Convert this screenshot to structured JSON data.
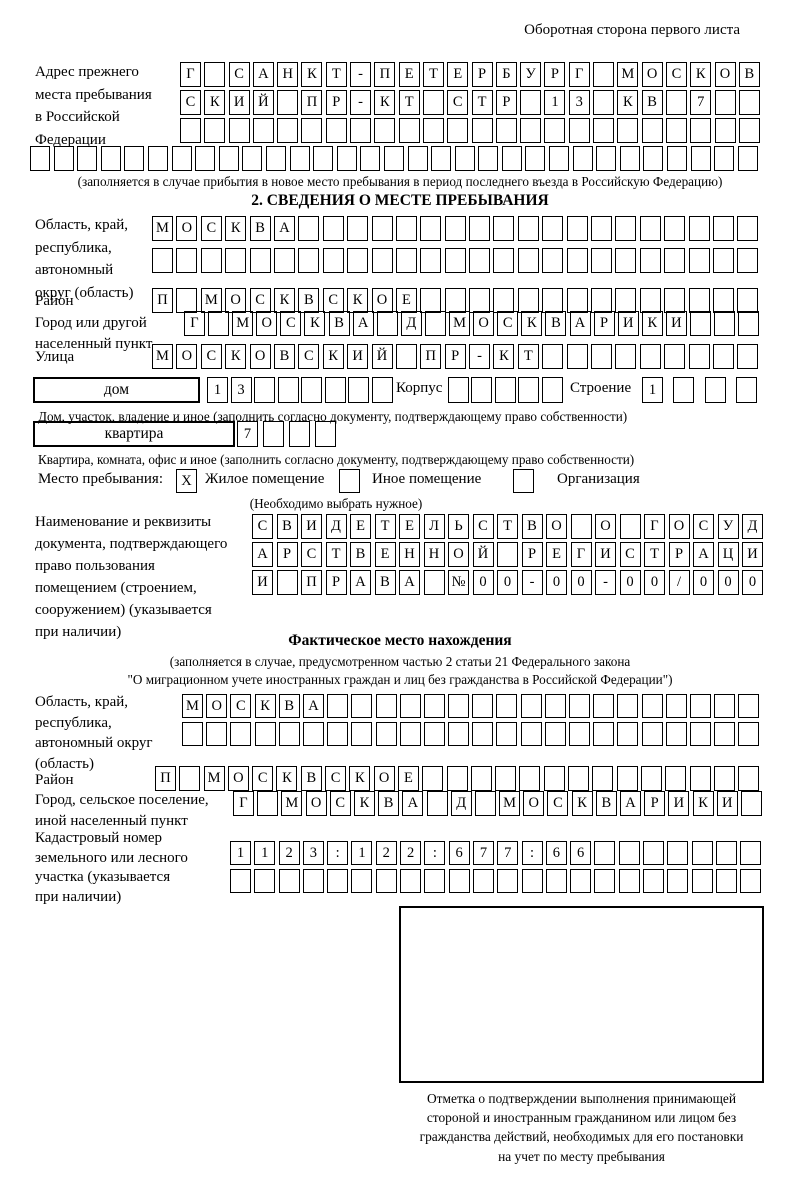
{
  "page": {
    "back_note": "Оборотная сторона первого листа"
  },
  "colors": {
    "ink": "#000000",
    "paper": "#ffffff"
  },
  "prev_address": {
    "label_lines": [
      "Адрес прежнего",
      "места пребывания",
      "в Российской",
      "Федерации"
    ],
    "rows": [
      {
        "boxes": 24,
        "text": "Г САНКТ-ПЕТЕРБУРГ МОСКОВ"
      },
      {
        "boxes": 24,
        "text": "СКИЙ ПР-КТ СТР 13 КВ 7"
      },
      {
        "boxes": 24,
        "text": ""
      },
      {
        "boxes": 31,
        "text": ""
      }
    ],
    "caption": "(заполняется в случае прибытия в новое место пребывания в период последнего въезда в Российскую Федерацию)"
  },
  "section2": {
    "title": "2. СВЕДЕНИЯ О МЕСТЕ ПРЕБЫВАНИЯ",
    "region": {
      "label_lines": [
        "Область, край,",
        "республика,",
        "автономный",
        "округ (область)"
      ],
      "rows": [
        {
          "boxes": 25,
          "text": "МОСКВА"
        },
        {
          "boxes": 25,
          "text": ""
        }
      ]
    },
    "district": {
      "label": "Район",
      "row": {
        "boxes": 25,
        "text": "П МОСКВСКОЕ"
      }
    },
    "city": {
      "label_lines": [
        "Город или другой",
        "населенный пункт"
      ],
      "row": {
        "boxes": 24,
        "text": "Г МОСКВА Д МОСКВАРИКИ"
      }
    },
    "street": {
      "label": "Улица",
      "row": {
        "boxes": 25,
        "text": "МОСКОВСКИЙ ПР-КТ"
      }
    },
    "house": {
      "type_label": "дом",
      "number": {
        "boxes": 8,
        "text": "13"
      },
      "korpus_label": "Корпус",
      "korpus": {
        "boxes": 5,
        "text": ""
      },
      "stroenie_label": "Строение",
      "stroenie": {
        "boxes": 4,
        "text": "1"
      },
      "caption": "Дом, участок, владение и иное (заполнить согласно документу, подтверждающему право собственности)"
    },
    "apartment": {
      "type_label": "квартира",
      "number": {
        "boxes": 4,
        "text": "7"
      },
      "caption": "Квартира, комната, офис и иное (заполнить согласно документу, подтверждающему право собственности)"
    },
    "stay_type": {
      "label": "Место пребывания:",
      "options": [
        {
          "label": "Жилое помещение",
          "checked": "X"
        },
        {
          "label": "Иное помещение",
          "checked": ""
        },
        {
          "label": "Организация",
          "checked": ""
        }
      ],
      "caption": "(Необходимо выбрать нужное)"
    },
    "document": {
      "label_lines": [
        "Наименование и реквизиты",
        "документа, подтверждающего",
        "право пользования",
        "помещением (строением,",
        "сооружением) (указывается",
        "при наличии)"
      ],
      "rows": [
        {
          "boxes": 21,
          "text": "СВИДЕТЕЛЬСТВО О ГОСУД"
        },
        {
          "boxes": 21,
          "text": "АРСТВЕННОЙ РЕГИСТРАЦИ"
        },
        {
          "boxes": 21,
          "text": "И ПРАВА №00-00-00/000"
        }
      ]
    }
  },
  "actual_location": {
    "title": "Фактическое место нахождения",
    "caption_lines": [
      "(заполняется в случае, предусмотренном частью 2 статьи 21 Федерального закона",
      "\"О миграционном учете иностранных граждан и лиц без гражданства в Российской Федерации\")"
    ],
    "region": {
      "label_lines": [
        "Область, край,",
        "республика,",
        "автономный округ",
        "(область)"
      ],
      "rows": [
        {
          "boxes": 24,
          "text": "МОСКВА"
        },
        {
          "boxes": 24,
          "text": ""
        }
      ]
    },
    "district": {
      "label": "Район",
      "row": {
        "boxes": 25,
        "text": "П МОСКВСКОЕ"
      }
    },
    "settlement": {
      "label_lines": [
        "Город, сельское поселение,",
        "иной населенный пункт"
      ],
      "row": {
        "boxes": 22,
        "text": "Г МОСКВА Д МОСКВАРИКИ"
      }
    },
    "cadastral": {
      "label_lines": [
        "Кадастровый номер",
        "земельного или лесного",
        "участка (указывается",
        "при наличии)"
      ],
      "rows": [
        {
          "boxes": 22,
          "text": "1123:122:677:66"
        },
        {
          "boxes": 22,
          "text": ""
        }
      ]
    },
    "stamp_caption_lines": [
      "Отметка о подтверждении выполнения принимающей",
      "стороной и иностранным гражданином или лицом без",
      "гражданства действий, необходимых для его постановки",
      "на учет по месту пребывания"
    ]
  }
}
